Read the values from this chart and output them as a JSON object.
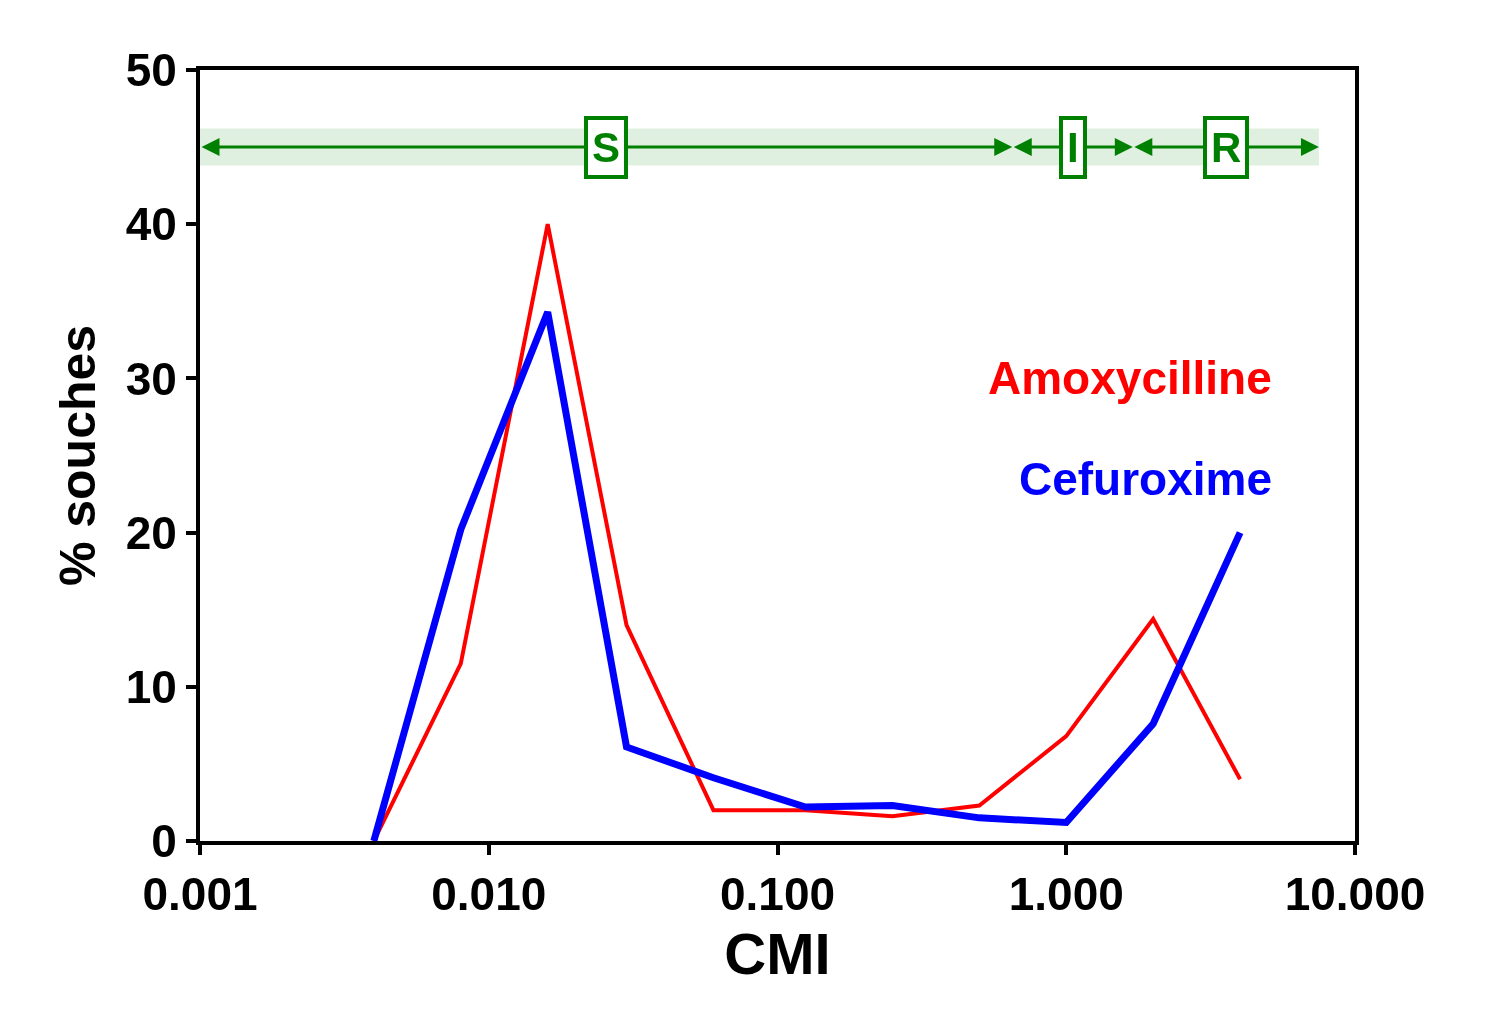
{
  "chart_data": {
    "type": "line",
    "xlabel": "CMI",
    "ylabel": "% souches",
    "log": "x",
    "grid": false,
    "legend": false,
    "x": [
      0.004,
      0.008,
      0.016,
      0.03,
      0.06,
      0.125,
      0.25,
      0.5,
      1,
      2,
      4
    ],
    "series": [
      {
        "name": "Amoxycilline",
        "color": "#ff0000",
        "values": [
          0,
          11.5,
          40,
          14,
          2,
          2,
          1.6,
          2.3,
          6.8,
          14.4,
          4
        ]
      },
      {
        "name": "Cefuroxime",
        "color": "#0000ff",
        "values": [
          0,
          20.2,
          34.3,
          6.1,
          4.1,
          2.2,
          2.3,
          1.5,
          1.2,
          7.6,
          20
        ]
      }
    ],
    "xlim": [
      0.001,
      10
    ],
    "xticks": [
      {
        "value": 0.001,
        "label": "0.001"
      },
      {
        "value": 0.01,
        "label": "0.010"
      },
      {
        "value": 0.1,
        "label": "0.100"
      },
      {
        "value": 1,
        "label": "1.000"
      },
      {
        "value": 10,
        "label": "10.000"
      }
    ],
    "ylim": [
      0,
      50
    ],
    "yticks": [
      0,
      10,
      20,
      30,
      40,
      50
    ],
    "bands": [
      {
        "axis": "x",
        "from": 0.001,
        "to": 0.65,
        "label": "S",
        "color": "#008000"
      },
      {
        "axis": "x",
        "from": 0.65,
        "to": 1.7,
        "label": "I",
        "color": "#008000"
      },
      {
        "axis": "x",
        "from": 1.7,
        "to": 7.5,
        "label": "R",
        "color": "#008000"
      }
    ]
  }
}
